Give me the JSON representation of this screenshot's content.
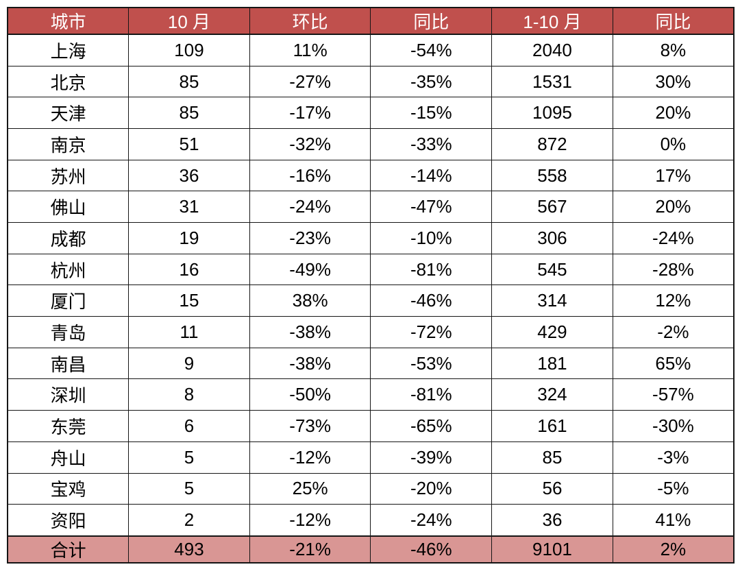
{
  "styles": {
    "header_bg": "#C0504D",
    "header_text": "#FFFFFF",
    "total_bg": "#D99694",
    "body_text": "#000000",
    "border_color": "#151515",
    "page_bg": "#FFFFFF"
  },
  "chart_data": {
    "type": "table",
    "title": "",
    "columns": [
      "城市",
      "10 月",
      "环比",
      "同比",
      "1-10 月",
      "同比"
    ],
    "rows": [
      [
        "上海",
        "109",
        "11%",
        "-54%",
        "2040",
        "8%"
      ],
      [
        "北京",
        "85",
        "-27%",
        "-35%",
        "1531",
        "30%"
      ],
      [
        "天津",
        "85",
        "-17%",
        "-15%",
        "1095",
        "20%"
      ],
      [
        "南京",
        "51",
        "-32%",
        "-33%",
        "872",
        "0%"
      ],
      [
        "苏州",
        "36",
        "-16%",
        "-14%",
        "558",
        "17%"
      ],
      [
        "佛山",
        "31",
        "-24%",
        "-47%",
        "567",
        "20%"
      ],
      [
        "成都",
        "19",
        "-23%",
        "-10%",
        "306",
        "-24%"
      ],
      [
        "杭州",
        "16",
        "-49%",
        "-81%",
        "545",
        "-28%"
      ],
      [
        "厦门",
        "15",
        "38%",
        "-46%",
        "314",
        "12%"
      ],
      [
        "青岛",
        "11",
        "-38%",
        "-72%",
        "429",
        "-2%"
      ],
      [
        "南昌",
        "9",
        "-38%",
        "-53%",
        "181",
        "65%"
      ],
      [
        "深圳",
        "8",
        "-50%",
        "-81%",
        "324",
        "-57%"
      ],
      [
        "东莞",
        "6",
        "-73%",
        "-65%",
        "161",
        "-30%"
      ],
      [
        "舟山",
        "5",
        "-12%",
        "-39%",
        "85",
        "-3%"
      ],
      [
        "宝鸡",
        "5",
        "25%",
        "-20%",
        "56",
        "-5%"
      ],
      [
        "资阳",
        "2",
        "-12%",
        "-24%",
        "36",
        "41%"
      ]
    ],
    "total_row": [
      "合计",
      "493",
      "-21%",
      "-46%",
      "9101",
      "2%"
    ],
    "layout": {
      "header_position": "top",
      "total_position": "bottom",
      "grid": "on"
    }
  }
}
